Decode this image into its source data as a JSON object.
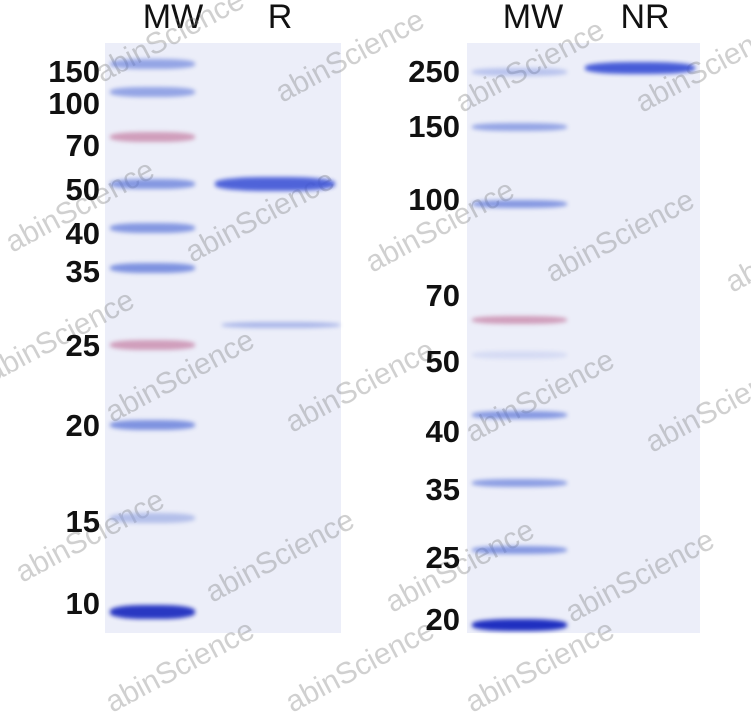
{
  "left_panel": {
    "lanes": [
      "MW",
      "R"
    ],
    "markers": [
      "150",
      "100",
      "70",
      "50",
      "40",
      "35",
      "25",
      "20",
      "15",
      "10"
    ]
  },
  "right_panel": {
    "lanes": [
      "MW",
      "NR"
    ],
    "markers": [
      "250",
      "150",
      "100",
      "70",
      "50",
      "40",
      "35",
      "25",
      "20"
    ]
  },
  "watermark": "abinScience",
  "colors": {
    "band_blue": "#4a5fd6",
    "marker_pink": "#c97aa8",
    "gel_bg": "#eceef9"
  }
}
